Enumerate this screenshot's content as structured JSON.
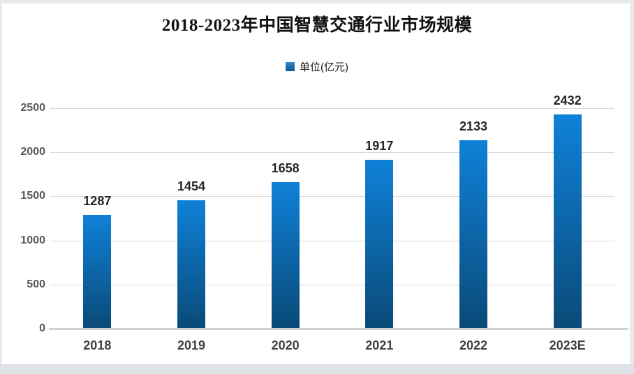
{
  "page": {
    "background_color": "#e7e9eb",
    "card_color": "#ffffff",
    "gridline_color": "#d9d9d9",
    "axis_line_color": "#d2d2d2"
  },
  "chart_data": {
    "type": "bar",
    "title": "2018-2023年中国智慧交通行业市场规模",
    "legend": {
      "label": "单位(亿元)",
      "position": "top-center",
      "swatch_color_top": "#2f88cb",
      "swatch_color_bottom": "#14548c"
    },
    "categories": [
      "2018",
      "2019",
      "2020",
      "2021",
      "2022",
      "2023E"
    ],
    "values": [
      1287,
      1454,
      1658,
      1917,
      2133,
      2432
    ],
    "xlabel": "",
    "ylabel": "",
    "ylim": [
      0,
      2500
    ],
    "yticks": [
      0,
      500,
      1000,
      1500,
      2000,
      2500
    ],
    "grid": true,
    "bar_color_top": "#0f81d8",
    "bar_color_bottom": "#0a4a78",
    "value_labels_shown": true
  }
}
